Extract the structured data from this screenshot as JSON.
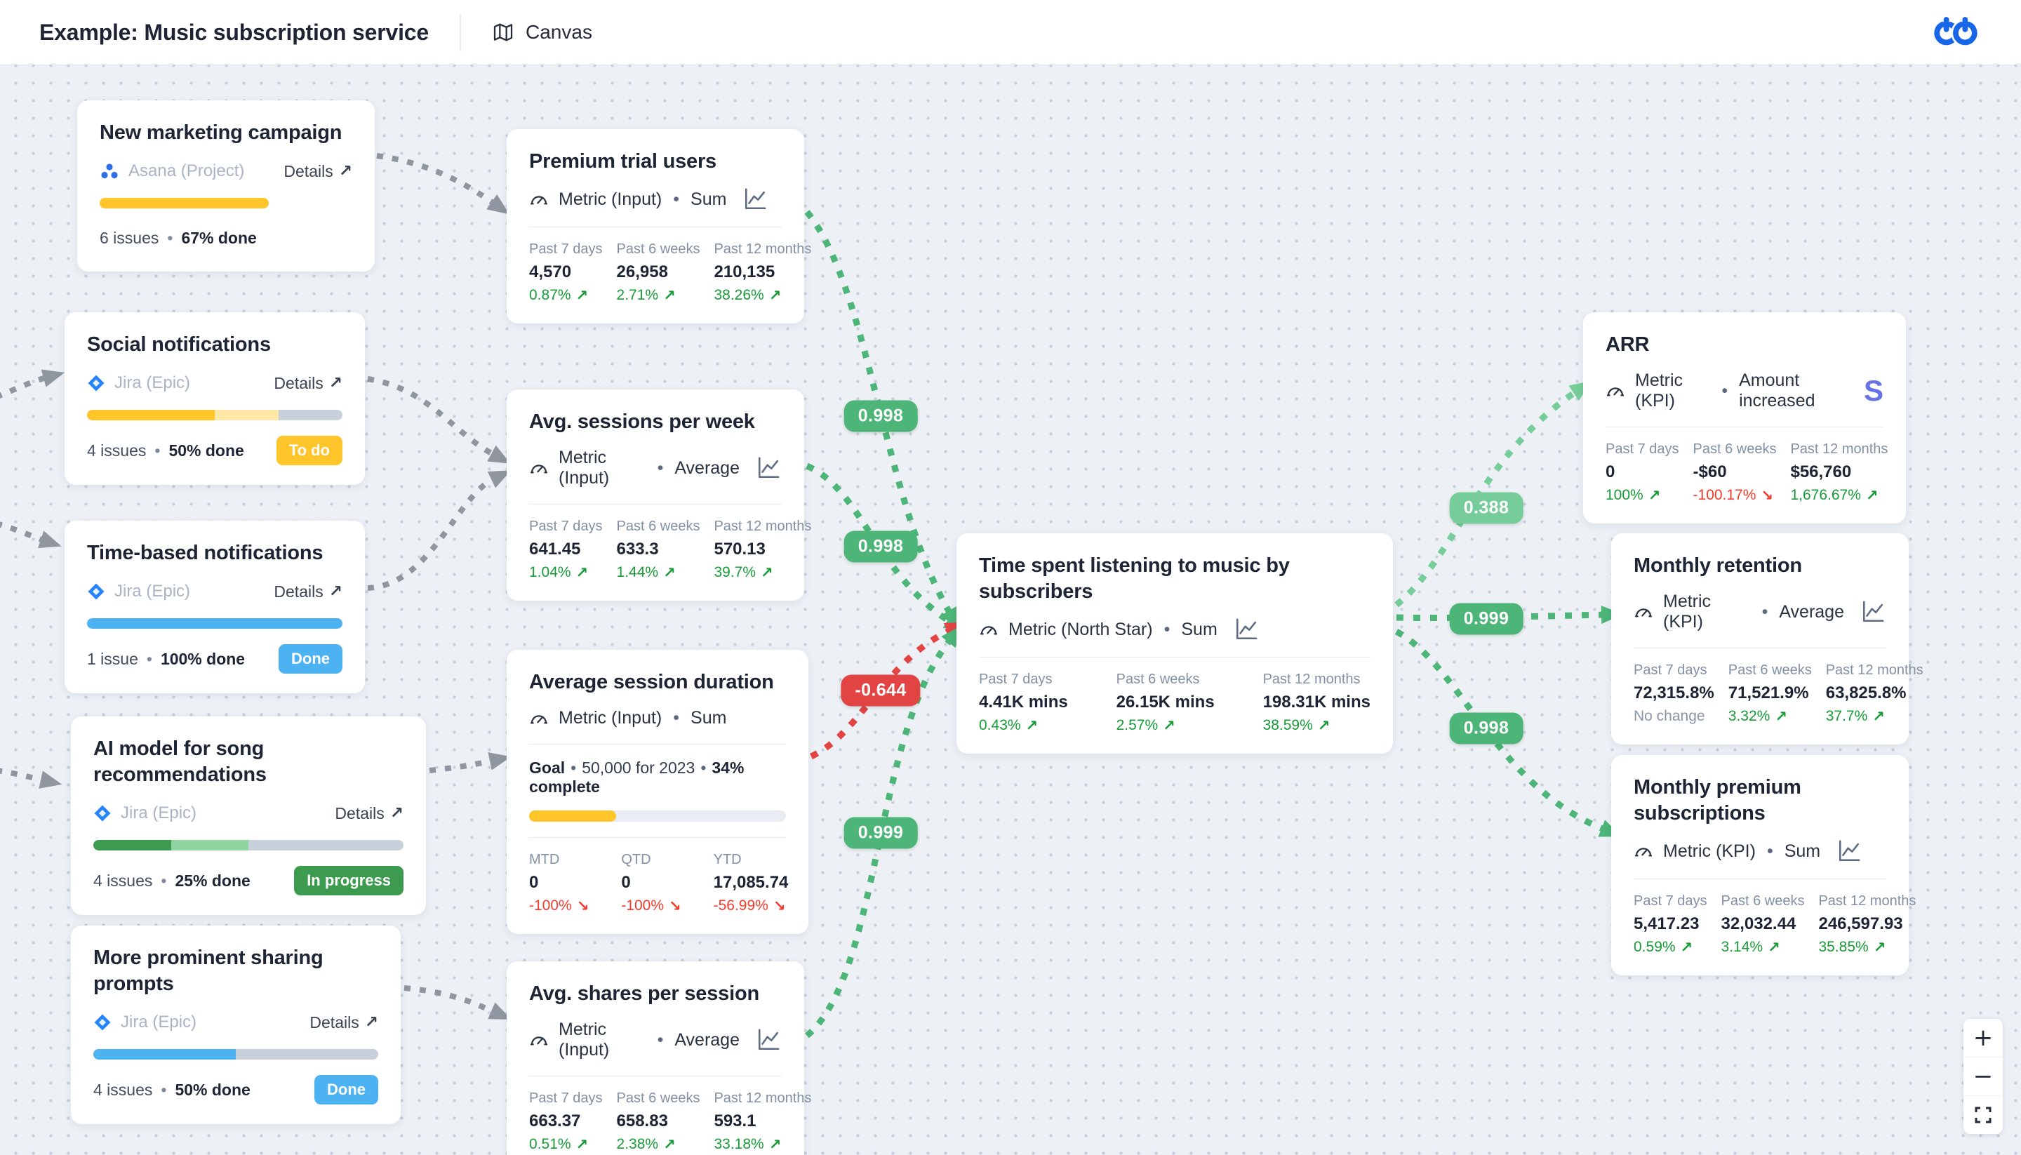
{
  "header": {
    "title": "Example: Music subscription service",
    "nav_canvas": "Canvas"
  },
  "ui": {
    "bullet": "•",
    "up_arrow": "↗",
    "down_arrow": "↘",
    "details_label": "Details",
    "details_arrow": "↗",
    "stripe_s": "S"
  },
  "controls": {
    "zoom_in": "+",
    "zoom_out": "−"
  },
  "palette": {
    "badge_green": "#4CB577",
    "badge_green_light": "#77CD9A",
    "badge_red": "#E24444",
    "edge_gray": "#8F969F",
    "up": "#179B37",
    "down": "#F43A2B",
    "neutral": "#8A96A8",
    "stripe": "#6772E5",
    "jira": "#2684FF",
    "asana": "#2E6FE6",
    "yellow": "#FFC52B",
    "yellow_light": "#FFE7A6",
    "track_gray": "#C7D0DB",
    "blue": "#4CB2F2",
    "green_dark": "#3D9B50",
    "green_light_seg": "#8FD5A2"
  },
  "canvas": {
    "project_cards": [
      {
        "id": "new-marketing-campaign",
        "title": "New marketing campaign",
        "source": "Asana (Project)",
        "source_icon": "asana",
        "progress": [
          {
            "tone": "yellow",
            "pct": 67
          }
        ],
        "single": true,
        "issues": "6 issues",
        "done": "67% done",
        "status": null
      },
      {
        "id": "social-notifications",
        "title": "Social notifications",
        "source": "Jira (Epic)",
        "source_icon": "jira",
        "progress": [
          {
            "tone": "yellow",
            "pct": 50
          },
          {
            "tone": "yellow_light",
            "pct": 25
          },
          {
            "tone": "track_gray",
            "pct": 25
          }
        ],
        "single": false,
        "issues": "4 issues",
        "done": "50% done",
        "status": {
          "label": "To do",
          "tone": "yellow"
        }
      },
      {
        "id": "time-based-notifications",
        "title": "Time-based notifications",
        "source": "Jira (Epic)",
        "source_icon": "jira",
        "progress": [
          {
            "tone": "blue",
            "pct": 100
          }
        ],
        "single": true,
        "issues": "1 issue",
        "done": "100% done",
        "status": {
          "label": "Done",
          "tone": "blue"
        }
      },
      {
        "id": "ai-model",
        "title": "AI model for song recommendations",
        "source": "Jira (Epic)",
        "source_icon": "jira",
        "progress": [
          {
            "tone": "green_dark",
            "pct": 25
          },
          {
            "tone": "green_light_seg",
            "pct": 25
          },
          {
            "tone": "track_gray",
            "pct": 50
          }
        ],
        "single": false,
        "issues": "4 issues",
        "done": "25% done",
        "status": {
          "label": "In progress",
          "tone": "green_dark"
        }
      },
      {
        "id": "sharing-prompts",
        "title": "More prominent sharing prompts",
        "source": "Jira (Epic)",
        "source_icon": "jira",
        "progress": [
          {
            "tone": "blue",
            "pct": 50
          },
          {
            "tone": "track_gray",
            "pct": 50
          }
        ],
        "single": false,
        "issues": "4 issues",
        "done": "50% done",
        "status": {
          "label": "Done",
          "tone": "blue"
        }
      }
    ],
    "metric_cards": [
      {
        "id": "premium-trial-users",
        "title": "Premium trial users",
        "type": "Metric (Input)",
        "agg": "Sum",
        "chart": true,
        "brand": null,
        "stats": [
          {
            "label": "Past 7 days",
            "value": "4,570",
            "change": "0.87%",
            "dir": "up"
          },
          {
            "label": "Past 6 weeks",
            "value": "26,958",
            "change": "2.71%",
            "dir": "up"
          },
          {
            "label": "Past 12 months",
            "value": "210,135",
            "change": "38.26%",
            "dir": "up"
          }
        ]
      },
      {
        "id": "avg-sessions-per-week",
        "title": "Avg. sessions per week",
        "type": "Metric (Input)",
        "agg": "Average",
        "chart": true,
        "brand": null,
        "stats": [
          {
            "label": "Past 7 days",
            "value": "641.45",
            "change": "1.04%",
            "dir": "up"
          },
          {
            "label": "Past 6 weeks",
            "value": "633.3",
            "change": "1.44%",
            "dir": "up"
          },
          {
            "label": "Past 12 months",
            "value": "570.13",
            "change": "39.7%",
            "dir": "up"
          }
        ]
      },
      {
        "id": "average-session-duration",
        "title": "Average session duration",
        "type": "Metric (Input)",
        "agg": "Sum",
        "chart": false,
        "brand": null,
        "goal": {
          "label": "Goal",
          "target": "50,000 for 2023",
          "complete": "34% complete",
          "pct": 34,
          "tone": "yellow"
        },
        "stats": [
          {
            "label": "MTD",
            "value": "0",
            "change": "-100%",
            "dir": "down"
          },
          {
            "label": "QTD",
            "value": "0",
            "change": "-100%",
            "dir": "down"
          },
          {
            "label": "YTD",
            "value": "17,085.74",
            "change": "-56.99%",
            "dir": "down"
          }
        ]
      },
      {
        "id": "avg-shares-per-session",
        "title": "Avg. shares per session",
        "type": "Metric (Input)",
        "agg": "Average",
        "chart": true,
        "brand": null,
        "stats": [
          {
            "label": "Past 7 days",
            "value": "663.37",
            "change": "0.51%",
            "dir": "up"
          },
          {
            "label": "Past 6 weeks",
            "value": "658.83",
            "change": "2.38%",
            "dir": "up"
          },
          {
            "label": "Past 12 months",
            "value": "593.1",
            "change": "33.18%",
            "dir": "up"
          }
        ]
      },
      {
        "id": "time-spent-listening",
        "title": "Time spent listening to music by subscribers",
        "type": "Metric (North Star)",
        "agg": "Sum",
        "chart": true,
        "brand": null,
        "stats": [
          {
            "label": "Past 7 days",
            "value": "4.41K mins",
            "change": "0.43%",
            "dir": "up"
          },
          {
            "label": "Past 6 weeks",
            "value": "26.15K mins",
            "change": "2.57%",
            "dir": "up"
          },
          {
            "label": "Past 12 months",
            "value": "198.31K mins",
            "change": "38.59%",
            "dir": "up"
          }
        ]
      },
      {
        "id": "arr",
        "title": "ARR",
        "type": "Metric (KPI)",
        "agg": "Amount increased",
        "chart": false,
        "brand": "stripe",
        "stats": [
          {
            "label": "Past 7 days",
            "value": "0",
            "change": "100%",
            "dir": "up"
          },
          {
            "label": "Past 6 weeks",
            "value": "-$60",
            "change": "-100.17%",
            "dir": "down"
          },
          {
            "label": "Past 12 months",
            "value": "$56,760",
            "change": "1,676.67%",
            "dir": "up"
          }
        ]
      },
      {
        "id": "monthly-retention",
        "title": "Monthly retention",
        "type": "Metric (KPI)",
        "agg": "Average",
        "chart": true,
        "brand": null,
        "stats": [
          {
            "label": "Past 7 days",
            "value": "72,315.8%",
            "change": "No change",
            "dir": "none"
          },
          {
            "label": "Past 6 weeks",
            "value": "71,521.9%",
            "change": "3.32%",
            "dir": "up"
          },
          {
            "label": "Past 12 months",
            "value": "63,825.8%",
            "change": "37.7%",
            "dir": "up"
          }
        ]
      },
      {
        "id": "monthly-premium-subscriptions",
        "title": "Monthly premium subscriptions",
        "type": "Metric (KPI)",
        "agg": "Sum",
        "chart": true,
        "brand": null,
        "stats": [
          {
            "label": "Past 7 days",
            "value": "5,417.23",
            "change": "0.59%",
            "dir": "up"
          },
          {
            "label": "Past 6 weeks",
            "value": "32,032.44",
            "change": "3.14%",
            "dir": "up"
          },
          {
            "label": "Past 12 months",
            "value": "246,597.93",
            "change": "35.85%",
            "dir": "up"
          }
        ]
      }
    ],
    "correlations": [
      {
        "value": "0.998",
        "tone": "badge_green"
      },
      {
        "value": "0.998",
        "tone": "badge_green"
      },
      {
        "value": "-0.644",
        "tone": "badge_red"
      },
      {
        "value": "0.999",
        "tone": "badge_green"
      },
      {
        "value": "0.388",
        "tone": "badge_green_light"
      },
      {
        "value": "0.999",
        "tone": "badge_green"
      },
      {
        "value": "0.998",
        "tone": "badge_green"
      }
    ]
  }
}
